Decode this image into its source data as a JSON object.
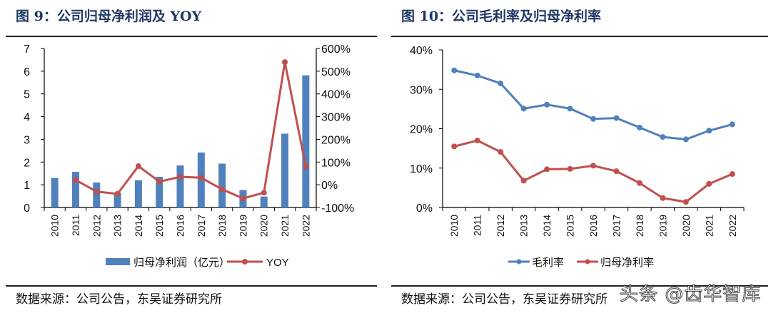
{
  "panels": {
    "left": {
      "title": "图 9：公司归母净利润及 YOY",
      "source": "数据来源：公司公告，东吴证券研究所"
    },
    "right": {
      "title": "图 10：公司毛利率及归母净利率",
      "source": "数据来源：公司公告，东吴证券研究所"
    }
  },
  "watermark": "头条 @齿华智库",
  "chart_data": [
    {
      "type": "bar+line",
      "title": "图 9：公司归母净利润及 YOY",
      "categories": [
        "2010",
        "2011",
        "2012",
        "2013",
        "2014",
        "2015",
        "2016",
        "2017",
        "2018",
        "2019",
        "2020",
        "2021",
        "2022"
      ],
      "series": [
        {
          "name": "归母净利润（亿元）",
          "type": "bar",
          "axis": "left",
          "color": "#4f81bd",
          "values": [
            1.3,
            1.57,
            1.1,
            0.65,
            1.2,
            1.35,
            1.85,
            2.42,
            1.93,
            0.77,
            0.48,
            3.25,
            5.82
          ]
        },
        {
          "name": "YOY",
          "type": "line",
          "axis": "right",
          "color": "#c0504d",
          "values": [
            null,
            21,
            -30,
            -40,
            82,
            14,
            35,
            31,
            -20,
            -60,
            -35,
            540,
            80
          ]
        }
      ],
      "y_left": {
        "min": 0,
        "max": 7,
        "ticks": [
          "0",
          "1",
          "2",
          "3",
          "4",
          "5",
          "6",
          "7"
        ]
      },
      "y_right": {
        "min": -100,
        "max": 600,
        "ticks": [
          "-100%",
          "0%",
          "100%",
          "200%",
          "300%",
          "400%",
          "500%",
          "600%"
        ]
      },
      "legend": "bottom",
      "grid": false
    },
    {
      "type": "line",
      "title": "图 10：公司毛利率及归母净利率",
      "categories": [
        "2010",
        "2011",
        "2012",
        "2013",
        "2014",
        "2015",
        "2016",
        "2017",
        "2018",
        "2019",
        "2020",
        "2021",
        "2022"
      ],
      "series": [
        {
          "name": "毛利率",
          "color": "#4f81bd",
          "values": [
            34.8,
            33.5,
            31.5,
            25.1,
            26.1,
            25.1,
            22.5,
            22.7,
            20.3,
            17.9,
            17.3,
            19.5,
            21.1
          ]
        },
        {
          "name": "归母净利率",
          "color": "#c0504d",
          "values": [
            15.5,
            17.0,
            14.1,
            6.8,
            9.7,
            9.8,
            10.6,
            9.2,
            6.2,
            2.4,
            1.4,
            6.0,
            8.5
          ]
        }
      ],
      "y": {
        "min": 0,
        "max": 40,
        "ticks": [
          "0%",
          "10%",
          "20%",
          "30%",
          "40%"
        ]
      },
      "legend": "bottom",
      "grid": false
    }
  ]
}
